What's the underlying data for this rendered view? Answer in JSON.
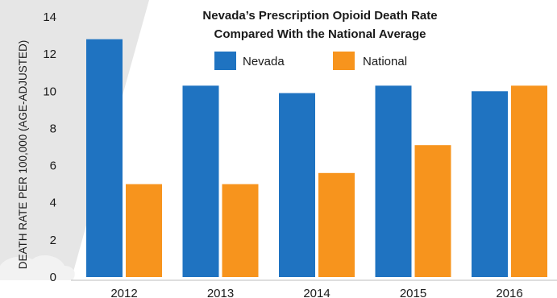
{
  "chart_data": {
    "type": "bar",
    "title": [
      "Nevada’s Prescription Opioid Death Rate",
      "Compared With the National Average"
    ],
    "ylabel": "DEATH RATE PER 100,000 (AGE-ADJUSTED)",
    "xlabel": "",
    "categories": [
      "2012",
      "2013",
      "2014",
      "2015",
      "2016"
    ],
    "series": [
      {
        "name": "Nevada",
        "color": "#1f73c1",
        "values": [
          12.8,
          10.3,
          9.9,
          10.3,
          10.0
        ]
      },
      {
        "name": "National",
        "color": "#f7941d",
        "values": [
          5.0,
          5.0,
          5.6,
          7.1,
          10.3
        ]
      }
    ],
    "ylim": [
      0,
      14
    ],
    "yticks": [
      "0",
      "2",
      "4",
      "6",
      "8",
      "10",
      "12",
      "14"
    ],
    "grid": false,
    "legend_position": "top-center"
  }
}
